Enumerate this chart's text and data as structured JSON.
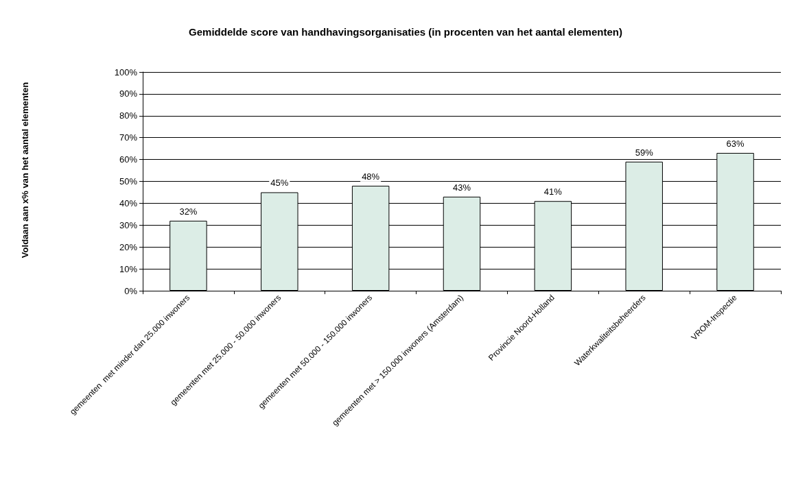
{
  "chart_data": {
    "type": "bar",
    "title": "Gemiddelde score van handhavingsorganisaties (in procenten van het aantal elementen)",
    "ylabel": "Voldaan aan x% van het aantal elementen",
    "categories": [
      "gemeenten  met minder dan 25.000 inwoners",
      "gemeenten met 25.000 - 50.000 inwoners",
      "gemeenten met 50.000 - 150.000 inwoners",
      "gemeenten met > 150.000 inwoners (Amsterdam)",
      "Provincie Noord-Holland",
      "Waterkwaliteitsbeheerders",
      "VROM-Inspectie"
    ],
    "values": [
      32,
      45,
      48,
      43,
      41,
      59,
      63
    ],
    "value_labels": [
      "32%",
      "45%",
      "48%",
      "43%",
      "41%",
      "59%",
      "63%"
    ],
    "color": "#dcede6",
    "ylim": [
      0,
      100
    ],
    "yticks": [
      {
        "value": 0,
        "label": "0%"
      },
      {
        "value": 10,
        "label": "10%"
      },
      {
        "value": 20,
        "label": "20%"
      },
      {
        "value": 30,
        "label": "30%"
      },
      {
        "value": 40,
        "label": "40%"
      },
      {
        "value": 50,
        "label": "50%"
      },
      {
        "value": 60,
        "label": "60%"
      },
      {
        "value": 70,
        "label": "70%"
      },
      {
        "value": 80,
        "label": "80%"
      },
      {
        "value": 90,
        "label": "90%"
      },
      {
        "value": 100,
        "label": "100%"
      }
    ],
    "grid": "y"
  }
}
